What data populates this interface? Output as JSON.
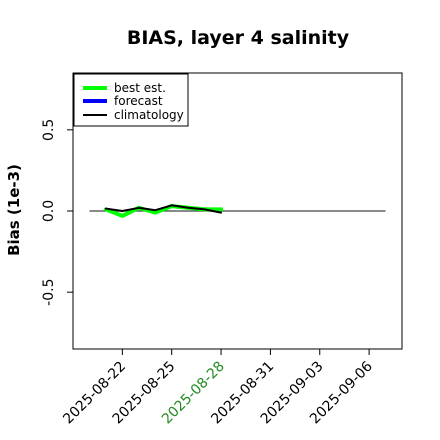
{
  "chart_data": {
    "type": "line",
    "title": "BIAS, layer 4 salinity",
    "ylabel": "Bias (1e-3)",
    "xlabel": "",
    "ylim": [
      -0.85,
      0.85
    ],
    "xlim": [
      "2025-08-19",
      "2025-09-08"
    ],
    "yticks": [
      {
        "value": -0.5,
        "label": "-0.5"
      },
      {
        "value": 0.0,
        "label": "0.0"
      },
      {
        "value": 0.5,
        "label": "0.5"
      }
    ],
    "xticks": [
      {
        "date": "2025-08-22",
        "label": "2025-08-22",
        "color": "#000000"
      },
      {
        "date": "2025-08-25",
        "label": "2025-08-25",
        "color": "#000000"
      },
      {
        "date": "2025-08-28",
        "label": "2025-08-28",
        "color": "#228b22"
      },
      {
        "date": "2025-08-31",
        "label": "2025-08-31",
        "color": "#000000"
      },
      {
        "date": "2025-09-03",
        "label": "2025-09-03",
        "color": "#000000"
      },
      {
        "date": "2025-09-06",
        "label": "2025-09-06",
        "color": "#000000"
      }
    ],
    "zero_line": {
      "from": "2025-08-20",
      "to": "2025-09-07",
      "y": 0
    },
    "series": [
      {
        "name": "best est.",
        "color": "#00ff00",
        "stroke": "thick",
        "x": [
          "2025-08-21",
          "2025-08-22",
          "2025-08-23",
          "2025-08-24",
          "2025-08-25",
          "2025-08-26",
          "2025-08-27",
          "2025-08-28"
        ],
        "y": [
          0.01,
          -0.03,
          0.02,
          -0.01,
          0.03,
          0.02,
          0.01,
          0.01
        ]
      },
      {
        "name": "forecast",
        "color": "#0000ff",
        "stroke": "thick",
        "x": [],
        "y": []
      },
      {
        "name": "climatology",
        "color": "#000000",
        "stroke": "thin",
        "x": [
          "2025-08-21",
          "2025-08-22",
          "2025-08-23",
          "2025-08-24",
          "2025-08-25",
          "2025-08-26",
          "2025-08-27",
          "2025-08-28"
        ],
        "y": [
          0.015,
          0.0,
          0.02,
          0.005,
          0.035,
          0.02,
          0.01,
          -0.01
        ]
      }
    ],
    "legend": {
      "position": "top-left"
    },
    "grid": false
  }
}
